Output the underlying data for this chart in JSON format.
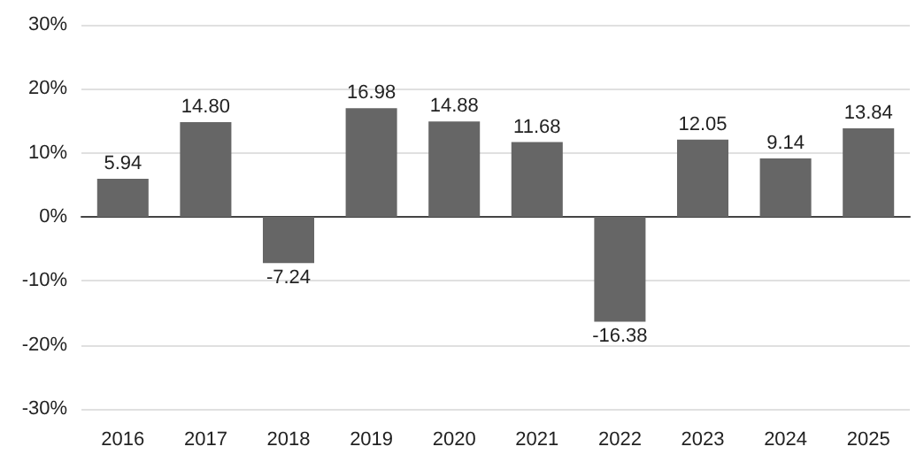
{
  "chart_data": {
    "type": "bar",
    "categories": [
      "2016",
      "2017",
      "2018",
      "2019",
      "2020",
      "2021",
      "2022",
      "2023",
      "2024",
      "2025"
    ],
    "values": [
      5.94,
      14.8,
      -7.24,
      16.98,
      14.88,
      11.68,
      -16.38,
      12.05,
      9.14,
      13.84
    ],
    "value_labels": [
      "5.94",
      "14.80",
      "-7.24",
      "16.98",
      "14.88",
      "11.68",
      "-16.38",
      "12.05",
      "9.14",
      "13.84"
    ],
    "color": "#666666",
    "ylim": [
      -30,
      30
    ],
    "yticks": [
      {
        "value": -30,
        "label": "-30%"
      },
      {
        "value": -20,
        "label": "-20%"
      },
      {
        "value": -10,
        "label": "-10%"
      },
      {
        "value": 0,
        "label": "0%"
      },
      {
        "value": 10,
        "label": "10%"
      },
      {
        "value": 20,
        "label": "20%"
      },
      {
        "value": 30,
        "label": "30%"
      }
    ],
    "grid": "y"
  }
}
